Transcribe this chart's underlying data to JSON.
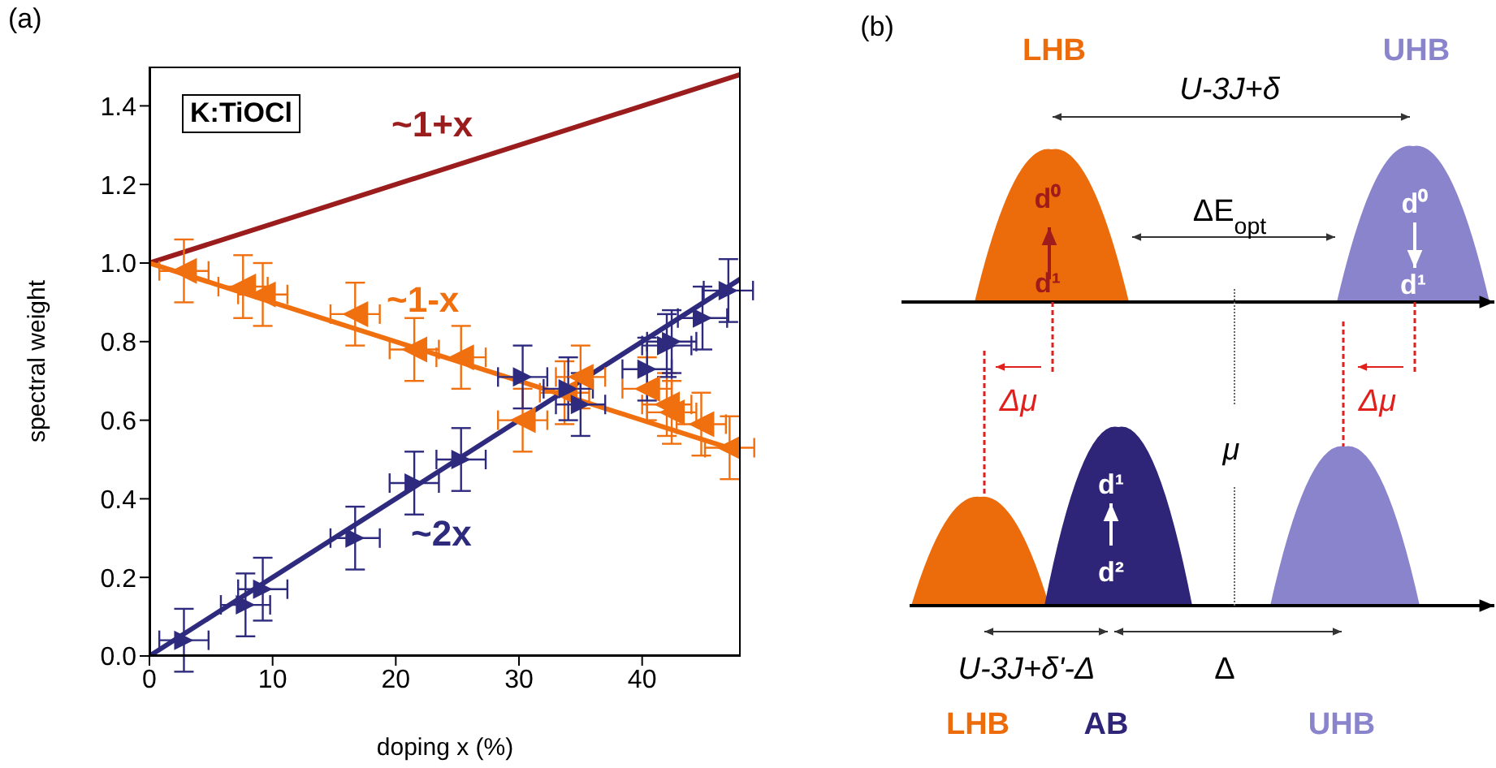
{
  "chart_data": [
    {
      "type": "scatter",
      "title": "(a)",
      "xlabel": "doping x (%)",
      "ylabel": "spectral weight",
      "xlim": [
        0,
        48
      ],
      "xticks": [
        0,
        10,
        20,
        30,
        40
      ],
      "ylim": [
        0,
        1.5
      ],
      "yticks": [
        {
          "value": 0,
          "label": "0.0"
        },
        0.2,
        0.4,
        0.6,
        0.8,
        {
          "value": 1,
          "label": "1.0"
        },
        1.2,
        1.4
      ],
      "annotations": [
        "K:TiOCl"
      ],
      "series": [
        {
          "type": "line",
          "name": "~1+x",
          "color": "#9b1c1c",
          "x": [
            0,
            48
          ],
          "values": [
            1,
            1.48
          ],
          "marker": "none"
        },
        {
          "type": "line",
          "name": "~1-x",
          "color": "#f07010",
          "x": [
            0,
            48
          ],
          "values": [
            1,
            0.52
          ],
          "marker": "none"
        },
        {
          "type": "line",
          "name": "~2x",
          "color": "#2e2a7e",
          "x": [
            0,
            48
          ],
          "values": [
            0,
            0.96
          ],
          "marker": "none"
        },
        {
          "type": "scatter",
          "color": "#f07010",
          "marker": "triangle",
          "x": [
            2.8,
            7.6,
            9.2,
            16.7,
            21.5,
            25.3,
            30.3,
            33.7,
            35.0,
            40.4,
            42.0,
            42.4,
            44.8,
            47.1
          ],
          "values": [
            0.98,
            0.94,
            0.92,
            0.87,
            0.78,
            0.76,
            0.6,
            0.67,
            0.71,
            0.68,
            0.64,
            0.62,
            0.59,
            0.53
          ],
          "errors": [
            0.08,
            0.08,
            0.08,
            0.08,
            0.08,
            0.08,
            0.08,
            0.08,
            0.08,
            0.08,
            0.08,
            0.08,
            0.08,
            0.08
          ],
          "xerrors": [
            2,
            2,
            2,
            2,
            2,
            2,
            2,
            2,
            2,
            2,
            2,
            2,
            2,
            2
          ]
        },
        {
          "type": "scatter",
          "color": "#2e2a7e",
          "marker": "triangle",
          "x": [
            2.8,
            7.8,
            9.2,
            16.7,
            21.5,
            25.3,
            30.3,
            34.0,
            35.0,
            40.4,
            42.0,
            42.4,
            44.9,
            47.0
          ],
          "values": [
            0.04,
            0.13,
            0.17,
            0.3,
            0.44,
            0.5,
            0.71,
            0.68,
            0.64,
            0.73,
            0.79,
            0.8,
            0.86,
            0.93
          ],
          "errors": [
            0.08,
            0.08,
            0.08,
            0.08,
            0.08,
            0.08,
            0.08,
            0.08,
            0.08,
            0.08,
            0.08,
            0.08,
            0.08,
            0.08
          ],
          "xerrors": [
            2,
            2,
            2,
            2,
            2,
            2,
            2,
            2,
            2,
            2,
            2,
            2,
            2,
            2
          ]
        }
      ]
    },
    {
      "type": "other",
      "title": "(b)",
      "annotations": [
        "LHB",
        "UHB",
        "U-3J+δ",
        "d⁰",
        "d¹",
        "ΔE$_{opt}$",
        "d⁰",
        "d¹",
        "Δμ",
        "Δμ",
        "μ",
        "d¹",
        "d²",
        "U-3J+δ'-Δ",
        "Δ",
        "LHB",
        "AB",
        "UHB"
      ]
    }
  ]
}
